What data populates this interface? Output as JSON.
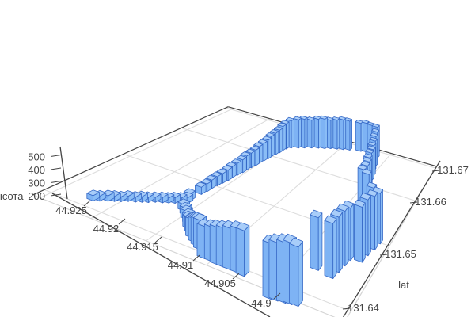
{
  "chart_data": {
    "type": "bar3d",
    "title": "",
    "xlabel": "",
    "ylabel": "lat",
    "zlabel": "высота",
    "x_ticks": [
      "44.925",
      "44.92",
      "44.915",
      "44.91",
      "44.905",
      "44.9"
    ],
    "y_ticks": [
      "131.64",
      "131.65",
      "131.66",
      "131.67"
    ],
    "z_ticks": [
      "200",
      "300",
      "400",
      "500"
    ],
    "x_range": [
      44.9,
      44.925
    ],
    "y_range": [
      131.64,
      131.67
    ],
    "z_range": [
      160,
      600
    ],
    "grid": true,
    "legend": "none",
    "colors": {
      "bar_face_left": "#7eb3f4",
      "bar_face_right": "#8abdf6",
      "bar_top": "#a8cdf9",
      "bar_edge": "#3568c6",
      "axis_line": "#444444",
      "tick_text": "#444444",
      "grid_line": "#dddddd",
      "floor_edge": "#d4d4d4",
      "background": "#ffffff"
    },
    "segments": [
      {
        "name": "west_tail",
        "points": [
          [
            44.922,
            131.6414,
            200
          ],
          [
            44.9216,
            131.6417,
            198
          ],
          [
            44.9211,
            131.6421,
            202
          ],
          [
            44.9207,
            131.6424,
            200
          ],
          [
            44.9203,
            131.6427,
            197
          ],
          [
            44.9199,
            131.6431,
            201
          ],
          [
            44.9194,
            131.6434,
            199
          ],
          [
            44.919,
            131.6437,
            203
          ],
          [
            44.9186,
            131.644,
            200
          ],
          [
            44.9182,
            131.6444,
            198
          ],
          [
            44.9177,
            131.6447,
            202
          ],
          [
            44.9173,
            131.645,
            200
          ],
          [
            44.9169,
            131.6453,
            204
          ],
          [
            44.9165,
            131.6457,
            201
          ],
          [
            44.9161,
            131.646,
            205
          ]
        ]
      },
      {
        "name": "junction_east",
        "points": [
          [
            44.9162,
            131.6465,
            215
          ]
        ]
      },
      {
        "name": "branch_northeast",
        "points": [
          [
            44.9161,
            131.6481,
            220
          ],
          [
            44.916,
            131.6489,
            225
          ],
          [
            44.916,
            131.6497,
            232
          ],
          [
            44.9159,
            131.6505,
            240
          ],
          [
            44.9158,
            131.6513,
            245
          ],
          [
            44.9157,
            131.6521,
            255
          ],
          [
            44.9157,
            131.6529,
            262
          ],
          [
            44.9156,
            131.6537,
            270
          ],
          [
            44.9155,
            131.6546,
            280
          ],
          [
            44.9155,
            131.6554,
            292
          ],
          [
            44.9154,
            131.6562,
            300
          ],
          [
            44.9153,
            131.657,
            310
          ],
          [
            44.9153,
            131.6578,
            322
          ],
          [
            44.9152,
            131.6586,
            335
          ],
          [
            44.9151,
            131.6594,
            350
          ],
          [
            44.9151,
            131.6602,
            365
          ],
          [
            44.915,
            131.661,
            380
          ],
          [
            44.9149,
            131.6618,
            395
          ],
          [
            44.9149,
            131.6627,
            412
          ],
          [
            44.9148,
            131.6633,
            428
          ]
        ]
      },
      {
        "name": "back_wall_west",
        "points": [
          [
            44.9145,
            131.664,
            450
          ],
          [
            44.9139,
            131.6646,
            462
          ],
          [
            44.9134,
            131.6651,
            470
          ],
          [
            44.9128,
            131.6657,
            460
          ],
          [
            44.9122,
            131.6662,
            475
          ],
          [
            44.9116,
            131.6666,
            482
          ],
          [
            44.9111,
            131.6671,
            470
          ],
          [
            44.9105,
            131.6675,
            478
          ],
          [
            44.9099,
            131.6679,
            488
          ],
          [
            44.9093,
            131.6683,
            480
          ]
        ]
      },
      {
        "name": "back_wall_east",
        "points": [
          [
            44.9082,
            131.6689,
            470
          ],
          [
            44.9076,
            131.6692,
            478
          ],
          [
            44.907,
            131.6694,
            465
          ],
          [
            44.9065,
            131.6696,
            455
          ]
        ]
      },
      {
        "name": "right_wall_descent",
        "points": [
          [
            44.9062,
            131.6684,
            440
          ],
          [
            44.906,
            131.6671,
            430
          ],
          [
            44.9057,
            131.6658,
            425
          ],
          [
            44.9055,
            131.6645,
            418
          ],
          [
            44.9052,
            131.6632,
            422
          ],
          [
            44.905,
            131.6619,
            430
          ],
          [
            44.9048,
            131.6606,
            426
          ],
          [
            44.9045,
            131.6593,
            435
          ],
          [
            44.9043,
            131.658,
            442
          ],
          [
            44.9042,
            131.6567,
            450
          ]
        ]
      },
      {
        "name": "right_front_connector",
        "points": [
          [
            44.903,
            131.654,
            530
          ],
          [
            44.902,
            131.652,
            510
          ]
        ]
      },
      {
        "name": "front_right_group",
        "points": [
          [
            44.901,
            131.6502,
            560
          ],
          [
            44.9011,
            131.649,
            575
          ],
          [
            44.9013,
            131.6478,
            585
          ],
          [
            44.9014,
            131.6466,
            570
          ]
        ]
      },
      {
        "name": "front_group_2",
        "points": [
          [
            44.9022,
            131.6463,
            550
          ],
          [
            44.9023,
            131.6453,
            560
          ],
          [
            44.9024,
            131.6442,
            555
          ],
          [
            44.9025,
            131.6432,
            545
          ]
        ]
      },
      {
        "name": "front_single",
        "points": [
          [
            44.9037,
            131.6435,
            535
          ]
        ]
      },
      {
        "name": "front_mid_group",
        "points": [
          [
            44.905,
            131.6384,
            520
          ],
          [
            44.9046,
            131.6385,
            535
          ],
          [
            44.9041,
            131.6386,
            548
          ],
          [
            44.9037,
            131.6387,
            555
          ],
          [
            44.9033,
            131.6388,
            540
          ]
        ]
      },
      {
        "name": "front_left_wall",
        "points": [
          [
            44.9108,
            131.6398,
            385
          ],
          [
            44.9102,
            131.6398,
            400
          ],
          [
            44.9097,
            131.6397,
            418
          ],
          [
            44.9092,
            131.6397,
            430
          ],
          [
            44.9087,
            131.6397,
            445
          ],
          [
            44.9081,
            131.6397,
            462
          ],
          [
            44.9076,
            131.6396,
            470
          ]
        ]
      },
      {
        "name": "branch_south",
        "points": [
          [
            44.9156,
            131.6447,
            210
          ],
          [
            44.9151,
            131.6442,
            215
          ],
          [
            44.9147,
            131.6437,
            222
          ],
          [
            44.9142,
            131.6432,
            230
          ],
          [
            44.9138,
            131.6426,
            245
          ],
          [
            44.9133,
            131.6421,
            265
          ],
          [
            44.9129,
            131.6416,
            295
          ],
          [
            44.9124,
            131.6412,
            330
          ],
          [
            44.912,
            131.6409,
            355
          ],
          [
            44.9116,
            131.6406,
            370
          ]
        ]
      }
    ]
  }
}
